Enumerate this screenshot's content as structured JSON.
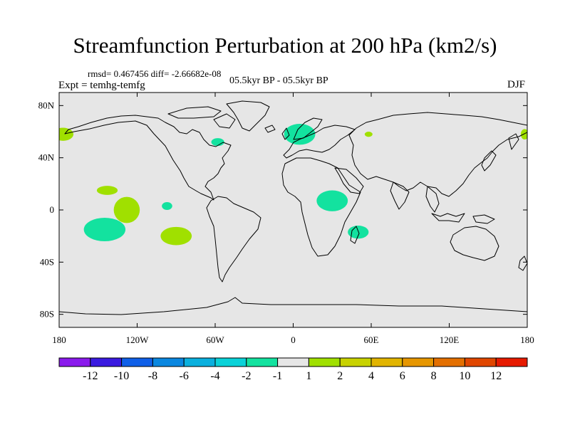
{
  "title": "Streamfunction Perturbation at 200 hPa (km2/s)",
  "stats_line": "rmsd= 0.467456 diff= -2.66682e-08",
  "experiment": "Expt = temhg-temfg",
  "period": "05.5kyr BP - 05.5kyr BP",
  "season": "DJF",
  "map": {
    "projection": "cylindrical-equidistant",
    "lon_range": [
      -180,
      180
    ],
    "lat_range": [
      -90,
      90
    ],
    "background_color": "#e6e6e6",
    "coastline_color": "#000000",
    "lat_ticks": [
      {
        "lat": 80,
        "label": "80N"
      },
      {
        "lat": 40,
        "label": "40N"
      },
      {
        "lat": 0,
        "label": "0"
      },
      {
        "lat": -40,
        "label": "40S"
      },
      {
        "lat": -80,
        "label": "80S"
      }
    ],
    "lon_ticks": [
      {
        "lon": -180,
        "label": "180"
      },
      {
        "lon": -120,
        "label": "120W"
      },
      {
        "lon": -60,
        "label": "60W"
      },
      {
        "lon": 0,
        "label": "0"
      },
      {
        "lon": 60,
        "label": "60E"
      },
      {
        "lon": 120,
        "label": "120E"
      },
      {
        "lon": 180,
        "label": "180"
      }
    ],
    "anomaly_patches": [
      {
        "lon": -177,
        "lat": 58,
        "rlon": 8,
        "rlat": 5,
        "sign": "positive",
        "color": "#a0e000"
      },
      {
        "lon": 178,
        "lat": 58,
        "rlon": 3,
        "rlat": 4,
        "sign": "positive",
        "color": "#a0e000"
      },
      {
        "lon": -58,
        "lat": 52,
        "rlon": 5,
        "rlat": 3,
        "sign": "negative",
        "color": "#13e29f"
      },
      {
        "lon": 5,
        "lat": 58,
        "rlon": 12,
        "rlat": 8,
        "sign": "negative",
        "color": "#13e29f"
      },
      {
        "lon": 58,
        "lat": 58,
        "rlon": 3,
        "rlat": 2,
        "sign": "positive",
        "color": "#a0e000"
      },
      {
        "lon": -143,
        "lat": 15,
        "rlon": 8,
        "rlat": 3.5,
        "sign": "positive",
        "color": "#a0e000"
      },
      {
        "lon": -128,
        "lat": 0,
        "rlon": 10,
        "rlat": 10,
        "sign": "positive",
        "color": "#a0e000"
      },
      {
        "lon": -97,
        "lat": 3,
        "rlon": 4,
        "rlat": 3,
        "sign": "negative",
        "color": "#13e29f"
      },
      {
        "lon": -145,
        "lat": -15,
        "rlon": 16,
        "rlat": 9,
        "sign": "negative",
        "color": "#13e29f"
      },
      {
        "lon": -90,
        "lat": -20,
        "rlon": 12,
        "rlat": 7,
        "sign": "positive",
        "color": "#a0e000"
      },
      {
        "lon": 30,
        "lat": 7,
        "rlon": 12,
        "rlat": 8,
        "sign": "negative",
        "color": "#13e29f"
      },
      {
        "lon": 50,
        "lat": -17,
        "rlon": 8,
        "rlat": 5,
        "sign": "negative",
        "color": "#13e29f"
      }
    ]
  },
  "colorbar": {
    "colors": [
      "#8a1aec",
      "#3a1ae0",
      "#0f5fe8",
      "#0a87e0",
      "#0ab0de",
      "#0ad2d8",
      "#13e29f",
      "#e6e6e6",
      "#a0e000",
      "#c8d200",
      "#e1b400",
      "#e69600",
      "#e36f00",
      "#e04600",
      "#e61a00"
    ],
    "labels": [
      "-12",
      "-10",
      "-8",
      "-6",
      "-4",
      "-2",
      "-1",
      "1",
      "2",
      "4",
      "6",
      "8",
      "10",
      "12"
    ]
  }
}
